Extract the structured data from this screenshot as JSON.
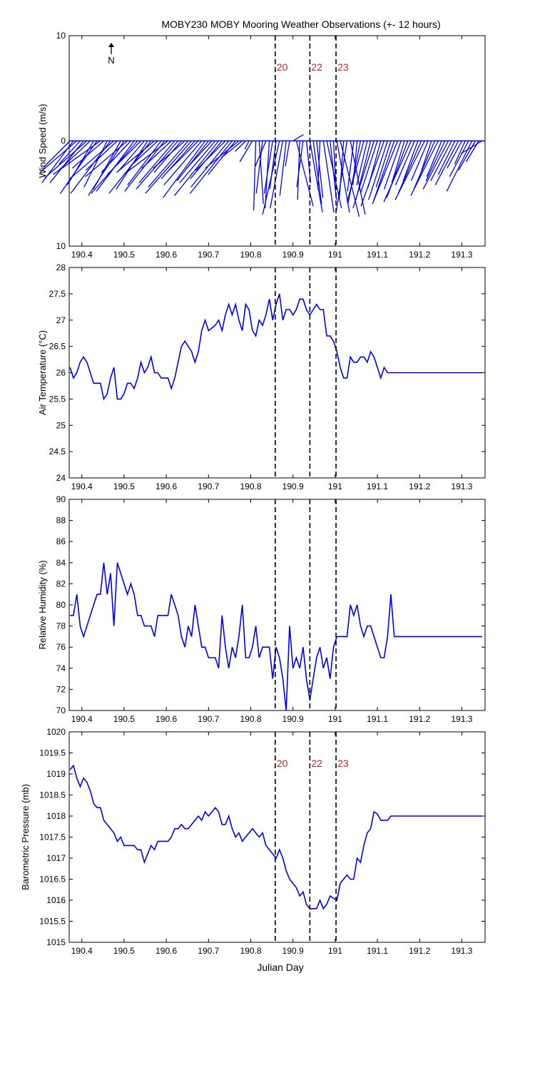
{
  "title": "MOBY230 MOBY Mooring Weather Observations (+- 12 hours)",
  "xlabel": "Julian Day",
  "north_label": "N",
  "line_color": "#0000ee",
  "marker_color": "#cc2222",
  "xlim": [
    190.37,
    191.355
  ],
  "xticks": [
    "190.4",
    "190.5",
    "190.6",
    "190.7",
    "190.8",
    "190.9",
    "191",
    "191.1",
    "191.2",
    "191.3"
  ],
  "event_markers": [
    {
      "label": "20",
      "x": 190.858
    },
    {
      "label": "22",
      "x": 190.94
    },
    {
      "label": "23",
      "x": 191.002
    }
  ],
  "chart_data": [
    {
      "type": "quiver",
      "panel": "wind",
      "ylabel": "Wind Speed (m/s)",
      "ylim": [
        -10,
        10
      ],
      "yticks": [
        "10",
        "0",
        "10"
      ],
      "show_markers": true,
      "note": "wind vectors plotted from baseline at 0; u = east component, v = north component (m/s)",
      "x": [
        190.372,
        190.38,
        190.388,
        190.396,
        190.404,
        190.412,
        190.42,
        190.428,
        190.436,
        190.444,
        190.452,
        190.46,
        190.468,
        190.476,
        190.484,
        190.492,
        190.5,
        190.508,
        190.516,
        190.524,
        190.532,
        190.54,
        190.548,
        190.556,
        190.564,
        190.572,
        190.58,
        190.588,
        190.596,
        190.604,
        190.612,
        190.62,
        190.628,
        190.636,
        190.644,
        190.652,
        190.66,
        190.668,
        190.676,
        190.684,
        190.692,
        190.7,
        190.708,
        190.716,
        190.724,
        190.732,
        190.74,
        190.748,
        190.756,
        190.764,
        190.772,
        190.78,
        190.788,
        190.796,
        190.804,
        190.812,
        190.82,
        190.828,
        190.836,
        190.844,
        190.852,
        190.86,
        190.868,
        190.876,
        190.884,
        190.892,
        190.9,
        190.908,
        190.916,
        190.924,
        190.932,
        190.94,
        190.948,
        190.956,
        190.964,
        190.972,
        190.98,
        190.988,
        190.996,
        191.004,
        191.012,
        191.02,
        191.028,
        191.036,
        191.044,
        191.052,
        191.06,
        191.068,
        191.076,
        191.084,
        191.092,
        191.1,
        191.108,
        191.116,
        191.124,
        191.132,
        191.14,
        191.148,
        191.156,
        191.164,
        191.172,
        191.18,
        191.188,
        191.196,
        191.204,
        191.212,
        191.22,
        191.228,
        191.236,
        191.244,
        191.252,
        191.26,
        191.268,
        191.276,
        191.284,
        191.292,
        191.3,
        191.308,
        191.316,
        191.324,
        191.332,
        191.34,
        191.348
      ],
      "u": [
        -2.5,
        -3.0,
        -3.5,
        -2.0,
        -3.2,
        -4.0,
        -3.0,
        -2.5,
        -3.5,
        -4.5,
        -3.0,
        -2.2,
        -3.8,
        -4.2,
        -3.0,
        -2.6,
        -3.4,
        -4.0,
        -2.8,
        -3.6,
        -4.4,
        -3.2,
        -2.4,
        -3.0,
        -4.0,
        -3.6,
        -2.6,
        -3.2,
        -3.8,
        -4.2,
        -2.8,
        -3.4,
        -4.0,
        -2.6,
        -3.0,
        -3.8,
        -4.4,
        -3.2,
        -2.8,
        -3.6,
        -4.0,
        -3.0,
        -2.4,
        -3.4,
        -4.2,
        -3.0,
        -2.8,
        -3.6,
        -4.0,
        -2.6,
        -3.2,
        -2.0,
        -1.0,
        -0.4,
        -1.2,
        -0.2,
        0.4,
        -0.6,
        -1.0,
        -0.4,
        -0.8,
        -0.6,
        -1.6,
        -1.2,
        -0.6,
        -0.4,
        1.0,
        1.6,
        -0.2,
        -0.6,
        0.4,
        1.2,
        0.8,
        0.6,
        -0.2,
        1.0,
        1.4,
        0.6,
        0.2,
        1.2,
        1.8,
        -0.4,
        -1.0,
        1.4,
        -0.6,
        -0.4,
        -1.2,
        -1.6,
        -1.0,
        -1.4,
        -2.0,
        -1.6,
        -1.2,
        -2.2,
        -1.8,
        -1.4,
        -2.0,
        -2.4,
        -1.6,
        -1.2,
        -2.0,
        -2.6,
        -1.8,
        -1.4,
        -2.2,
        -2.8,
        -1.6,
        -1.2,
        -2.0,
        -2.6,
        -1.4,
        -1.8,
        -2.4,
        -2.0,
        -1.6,
        -2.2,
        -1.4,
        -1.0,
        -1.8,
        -2.4,
        -1.6,
        -1.2,
        -2.0
      ],
      "v": [
        -2.5,
        -4.0,
        -3.0,
        -2.2,
        -4.0,
        -3.5,
        -2.8,
        -4.2,
        -5.0,
        -3.2,
        -2.6,
        -4.4,
        -5.0,
        -3.6,
        -2.8,
        -4.6,
        -5.2,
        -3.4,
        -3.0,
        -4.8,
        -5.0,
        -3.2,
        -2.8,
        -4.6,
        -5.0,
        -3.0,
        -2.4,
        -4.2,
        -4.8,
        -3.2,
        -2.6,
        -4.0,
        -4.6,
        -3.0,
        -2.6,
        -4.4,
        -5.0,
        -3.6,
        -2.8,
        -4.2,
        -5.4,
        -3.8,
        -2.6,
        -4.0,
        -5.2,
        -3.6,
        -2.8,
        -4.4,
        -5.0,
        -3.2,
        -2.6,
        -1.6,
        -1.0,
        -0.8,
        -2.0,
        -6.6,
        -6.0,
        -5.0,
        -2.4,
        -6.4,
        -5.0,
        -4.6,
        -7.0,
        -6.4,
        -5.2,
        -2.4,
        0.6,
        -6.2,
        -5.6,
        -4.4,
        -4.0,
        -6.8,
        -6.0,
        -5.4,
        -4.6,
        -6.8,
        -6.4,
        -5.6,
        -3.8,
        -6.8,
        -7.2,
        -5.4,
        -6.6,
        -7.0,
        -4.8,
        -4.2,
        -6.0,
        -5.8,
        -4.2,
        -5.6,
        -6.4,
        -5.0,
        -4.4,
        -6.2,
        -5.6,
        -4.4,
        -5.8,
        -6.0,
        -4.6,
        -4.0,
        -5.4,
        -5.8,
        -4.2,
        -3.8,
        -5.0,
        -5.6,
        -3.8,
        -3.6,
        -4.6,
        -5.2,
        -3.4,
        -3.8,
        -4.6,
        -3.8,
        -3.2,
        -4.2,
        -2.6,
        -2.2,
        -3.4,
        -4.8,
        -2.8,
        -2.0,
        -1.2
      ]
    },
    {
      "type": "line",
      "panel": "air_temperature",
      "ylabel": "Air Temperature (°C)",
      "ylim": [
        24,
        28
      ],
      "yticks": [
        "24",
        "24.5",
        "25",
        "25.5",
        "26",
        "26.5",
        "27",
        "27.5",
        "28"
      ],
      "show_markers": false,
      "x": [
        190.372,
        190.38,
        190.388,
        190.396,
        190.404,
        190.412,
        190.42,
        190.428,
        190.436,
        190.444,
        190.452,
        190.46,
        190.468,
        190.476,
        190.484,
        190.492,
        190.5,
        190.508,
        190.516,
        190.524,
        190.532,
        190.54,
        190.548,
        190.556,
        190.564,
        190.572,
        190.58,
        190.588,
        190.596,
        190.604,
        190.612,
        190.62,
        190.628,
        190.636,
        190.644,
        190.652,
        190.66,
        190.668,
        190.676,
        190.684,
        190.692,
        190.7,
        190.708,
        190.716,
        190.724,
        190.732,
        190.74,
        190.748,
        190.756,
        190.764,
        190.772,
        190.78,
        190.788,
        190.796,
        190.804,
        190.812,
        190.82,
        190.828,
        190.836,
        190.844,
        190.852,
        190.86,
        190.868,
        190.876,
        190.884,
        190.892,
        190.9,
        190.908,
        190.916,
        190.924,
        190.932,
        190.94,
        190.948,
        190.956,
        190.964,
        190.972,
        190.98,
        190.988,
        190.996,
        191.004,
        191.012,
        191.02,
        191.028,
        191.036,
        191.044,
        191.052,
        191.06,
        191.068,
        191.076,
        191.084,
        191.092,
        191.1,
        191.108,
        191.116,
        191.124,
        191.132,
        191.14,
        191.148,
        191.156,
        191.164,
        191.172,
        191.18,
        191.188,
        191.196,
        191.204,
        191.212,
        191.22,
        191.228,
        191.236,
        191.244,
        191.252,
        191.26,
        191.268,
        191.276,
        191.284,
        191.292,
        191.3,
        191.308,
        191.316,
        191.324,
        191.332,
        191.34,
        191.348
      ],
      "y": [
        26.1,
        25.9,
        26.0,
        26.2,
        26.3,
        26.2,
        26.0,
        25.8,
        25.8,
        25.8,
        25.5,
        25.6,
        25.9,
        26.1,
        25.5,
        25.5,
        25.6,
        25.8,
        25.8,
        25.7,
        25.9,
        26.2,
        26.0,
        26.1,
        26.3,
        26.0,
        26.0,
        25.9,
        25.9,
        25.9,
        25.7,
        25.9,
        26.2,
        26.5,
        26.6,
        26.5,
        26.4,
        26.2,
        26.4,
        26.8,
        27.0,
        26.8,
        26.85,
        26.9,
        27.0,
        26.8,
        27.1,
        27.3,
        27.1,
        27.3,
        27.0,
        26.8,
        27.3,
        27.2,
        26.8,
        26.7,
        27.0,
        26.9,
        27.1,
        27.4,
        27.0,
        27.3,
        27.5,
        27.0,
        27.2,
        27.2,
        27.1,
        27.2,
        27.4,
        27.4,
        27.2,
        27.1,
        27.2,
        27.3,
        27.2,
        27.2,
        26.7,
        26.7,
        26.6,
        26.4,
        26.1,
        25.9,
        25.9,
        26.3,
        26.2,
        26.2,
        26.3,
        26.3,
        26.2,
        26.4,
        26.3,
        26.1,
        25.9,
        26.1,
        26.0,
        26.0,
        26.0,
        26.0,
        26.0,
        26.0,
        26.0,
        26.0,
        26.0,
        26.0,
        26.0,
        26.0,
        26.0,
        26.0,
        26.0,
        26.0,
        26.0,
        26.0,
        26.0,
        26.0,
        26.0,
        26.0,
        26.0,
        26.0,
        26.0,
        26.0,
        26.0,
        26.0,
        26.0
      ]
    },
    {
      "type": "line",
      "panel": "relative_humidity",
      "ylabel": "Relative Humidity (%)",
      "ylim": [
        70,
        90
      ],
      "yticks": [
        "70",
        "72",
        "74",
        "76",
        "78",
        "80",
        "82",
        "84",
        "86",
        "88",
        "90"
      ],
      "show_markers": false,
      "x": [
        190.372,
        190.38,
        190.388,
        190.396,
        190.404,
        190.412,
        190.42,
        190.428,
        190.436,
        190.444,
        190.452,
        190.46,
        190.468,
        190.476,
        190.484,
        190.492,
        190.5,
        190.508,
        190.516,
        190.524,
        190.532,
        190.54,
        190.548,
        190.556,
        190.564,
        190.572,
        190.58,
        190.588,
        190.596,
        190.604,
        190.612,
        190.62,
        190.628,
        190.636,
        190.644,
        190.652,
        190.66,
        190.668,
        190.676,
        190.684,
        190.692,
        190.7,
        190.708,
        190.716,
        190.724,
        190.732,
        190.74,
        190.748,
        190.756,
        190.764,
        190.772,
        190.78,
        190.788,
        190.796,
        190.804,
        190.812,
        190.82,
        190.828,
        190.836,
        190.844,
        190.852,
        190.86,
        190.868,
        190.876,
        190.884,
        190.892,
        190.9,
        190.908,
        190.916,
        190.924,
        190.932,
        190.94,
        190.948,
        190.956,
        190.964,
        190.972,
        190.98,
        190.988,
        190.996,
        191.004,
        191.012,
        191.02,
        191.028,
        191.036,
        191.044,
        191.052,
        191.06,
        191.068,
        191.076,
        191.084,
        191.092,
        191.1,
        191.108,
        191.116,
        191.124,
        191.132,
        191.14,
        191.148,
        191.156,
        191.164,
        191.172,
        191.18,
        191.188,
        191.196,
        191.204,
        191.212,
        191.22,
        191.228,
        191.236,
        191.244,
        191.252,
        191.26,
        191.268,
        191.276,
        191.284,
        191.292,
        191.3,
        191.308,
        191.316,
        191.324,
        191.332,
        191.34,
        191.348
      ],
      "y": [
        79,
        79,
        81,
        78,
        77,
        78,
        79,
        80,
        81,
        81,
        84,
        81,
        83,
        78,
        84,
        83,
        82,
        81,
        82,
        81,
        79,
        79,
        78,
        78,
        78,
        77,
        79,
        79,
        79,
        79,
        81,
        80,
        79,
        77,
        76,
        78,
        77,
        80,
        78,
        76,
        76,
        75,
        75,
        75,
        74,
        79,
        76,
        74,
        76,
        75,
        77,
        80,
        75,
        75,
        76,
        78,
        75,
        76,
        76,
        76,
        73,
        76,
        75,
        73,
        70,
        78,
        74,
        75,
        74,
        76,
        73,
        71,
        73,
        75,
        76,
        74,
        75,
        73,
        76,
        77,
        77,
        77,
        77,
        80,
        79,
        80,
        78,
        77,
        78,
        78,
        77,
        76,
        75,
        75,
        77,
        81,
        77,
        77,
        77,
        77,
        77,
        77,
        77,
        77,
        77,
        77,
        77,
        77,
        77,
        77,
        77,
        77,
        77,
        77,
        77,
        77,
        77,
        77,
        77,
        77,
        77,
        77,
        77
      ]
    },
    {
      "type": "line",
      "panel": "barometric_pressure",
      "ylabel": "Barometric Pressure (mb)",
      "ylim": [
        1015,
        1020
      ],
      "yticks": [
        "1015",
        "1015.5",
        "1016",
        "1016.5",
        "1017",
        "1017.5",
        "1018",
        "1018.5",
        "1019",
        "1019.5",
        "1020"
      ],
      "show_markers": true,
      "x": [
        190.372,
        190.38,
        190.388,
        190.396,
        190.404,
        190.412,
        190.42,
        190.428,
        190.436,
        190.444,
        190.452,
        190.46,
        190.468,
        190.476,
        190.484,
        190.492,
        190.5,
        190.508,
        190.516,
        190.524,
        190.532,
        190.54,
        190.548,
        190.556,
        190.564,
        190.572,
        190.58,
        190.588,
        190.596,
        190.604,
        190.612,
        190.62,
        190.628,
        190.636,
        190.644,
        190.652,
        190.66,
        190.668,
        190.676,
        190.684,
        190.692,
        190.7,
        190.708,
        190.716,
        190.724,
        190.732,
        190.74,
        190.748,
        190.756,
        190.764,
        190.772,
        190.78,
        190.788,
        190.796,
        190.804,
        190.812,
        190.82,
        190.828,
        190.836,
        190.844,
        190.852,
        190.86,
        190.868,
        190.876,
        190.884,
        190.892,
        190.9,
        190.908,
        190.916,
        190.924,
        190.932,
        190.94,
        190.948,
        190.956,
        190.964,
        190.972,
        190.98,
        190.988,
        190.996,
        191.004,
        191.012,
        191.02,
        191.028,
        191.036,
        191.044,
        191.052,
        191.06,
        191.068,
        191.076,
        191.084,
        191.092,
        191.1,
        191.108,
        191.116,
        191.124,
        191.132,
        191.14,
        191.148,
        191.156,
        191.164,
        191.172,
        191.18,
        191.188,
        191.196,
        191.204,
        191.212,
        191.22,
        191.228,
        191.236,
        191.244,
        191.252,
        191.26,
        191.268,
        191.276,
        191.284,
        191.292,
        191.3,
        191.308,
        191.316,
        191.324,
        191.332,
        191.34,
        191.348
      ],
      "y": [
        1019.1,
        1019.2,
        1018.9,
        1018.7,
        1018.9,
        1018.8,
        1018.6,
        1018.3,
        1018.2,
        1018.2,
        1017.9,
        1017.8,
        1017.7,
        1017.6,
        1017.4,
        1017.5,
        1017.3,
        1017.3,
        1017.3,
        1017.3,
        1017.2,
        1017.2,
        1016.9,
        1017.1,
        1017.3,
        1017.2,
        1017.4,
        1017.4,
        1017.4,
        1017.4,
        1017.5,
        1017.7,
        1017.7,
        1017.8,
        1017.7,
        1017.7,
        1017.8,
        1017.9,
        1018.0,
        1017.9,
        1018.1,
        1018.0,
        1018.1,
        1018.2,
        1018.1,
        1017.8,
        1017.8,
        1018.0,
        1017.7,
        1017.5,
        1017.6,
        1017.4,
        1017.5,
        1017.6,
        1017.7,
        1017.6,
        1017.5,
        1017.6,
        1017.3,
        1017.2,
        1017.1,
        1017.0,
        1017.2,
        1017.0,
        1016.7,
        1016.5,
        1016.4,
        1016.3,
        1016.1,
        1016.2,
        1015.9,
        1015.8,
        1015.8,
        1015.8,
        1016.0,
        1015.8,
        1015.9,
        1016.1,
        1016.05,
        1016.0,
        1016.4,
        1016.5,
        1016.6,
        1016.5,
        1016.5,
        1017.0,
        1016.9,
        1017.3,
        1017.6,
        1017.7,
        1018.1,
        1018.05,
        1017.9,
        1017.9,
        1017.9,
        1018.0,
        1018.0,
        1018.0,
        1018.0,
        1018.0,
        1018.0,
        1018.0,
        1018.0,
        1018.0,
        1018.0,
        1018.0,
        1018.0,
        1018.0,
        1018.0,
        1018.0,
        1018.0,
        1018.0,
        1018.0,
        1018.0,
        1018.0,
        1018.0,
        1018.0,
        1018.0,
        1018.0,
        1018.0,
        1018.0,
        1018.0,
        1018.0
      ]
    }
  ]
}
